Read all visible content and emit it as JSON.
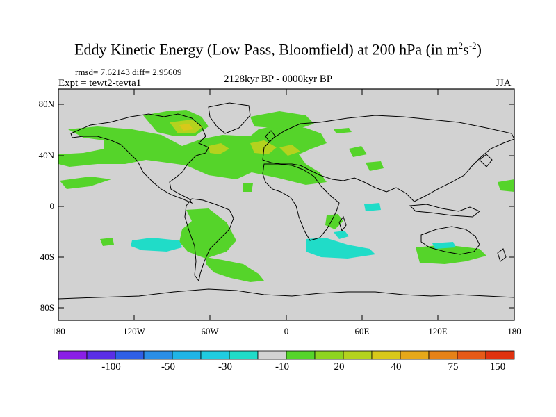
{
  "title": {
    "main": "Eddy Kinetic Energy (Low Pass, Bloomfield) at 200 hPa (in m",
    "exp1": "2",
    "mid": "s",
    "exp2": "-2",
    "close": ")"
  },
  "stats": {
    "rmsd": "rmsd= 7.62143 diff= 2.95609"
  },
  "left_label": "Expt = tewt2-tevta1",
  "center_label": "2128kyr BP - 0000kyr BP",
  "right_label": "JJA",
  "lat_labels": [
    "80N",
    "40N",
    "0",
    "40S",
    "80S"
  ],
  "lon_labels": [
    "180",
    "120W",
    "60W",
    "0",
    "60E",
    "120E",
    "180"
  ],
  "colorbar": {
    "labels": [
      "-100",
      "-50",
      "-30",
      "-10",
      "20",
      "40",
      "75",
      "150"
    ],
    "colors": [
      "#8a1ee6",
      "#5a2ee6",
      "#2f5fe6",
      "#2a8ee6",
      "#20b4e6",
      "#20cce0",
      "#20dcc8",
      "#d2d2d2",
      "#55d42a",
      "#8ed420",
      "#b4d21e",
      "#d8c81a",
      "#e6a81a",
      "#e68218",
      "#e65a18",
      "#e03210"
    ]
  },
  "map": {
    "ocean_color": "#d2d2d2",
    "positive_color": "#55d42a",
    "strong_color": "#b4d21e",
    "peak_color": "#d8c81a",
    "negative_color": "#20dcc8"
  }
}
